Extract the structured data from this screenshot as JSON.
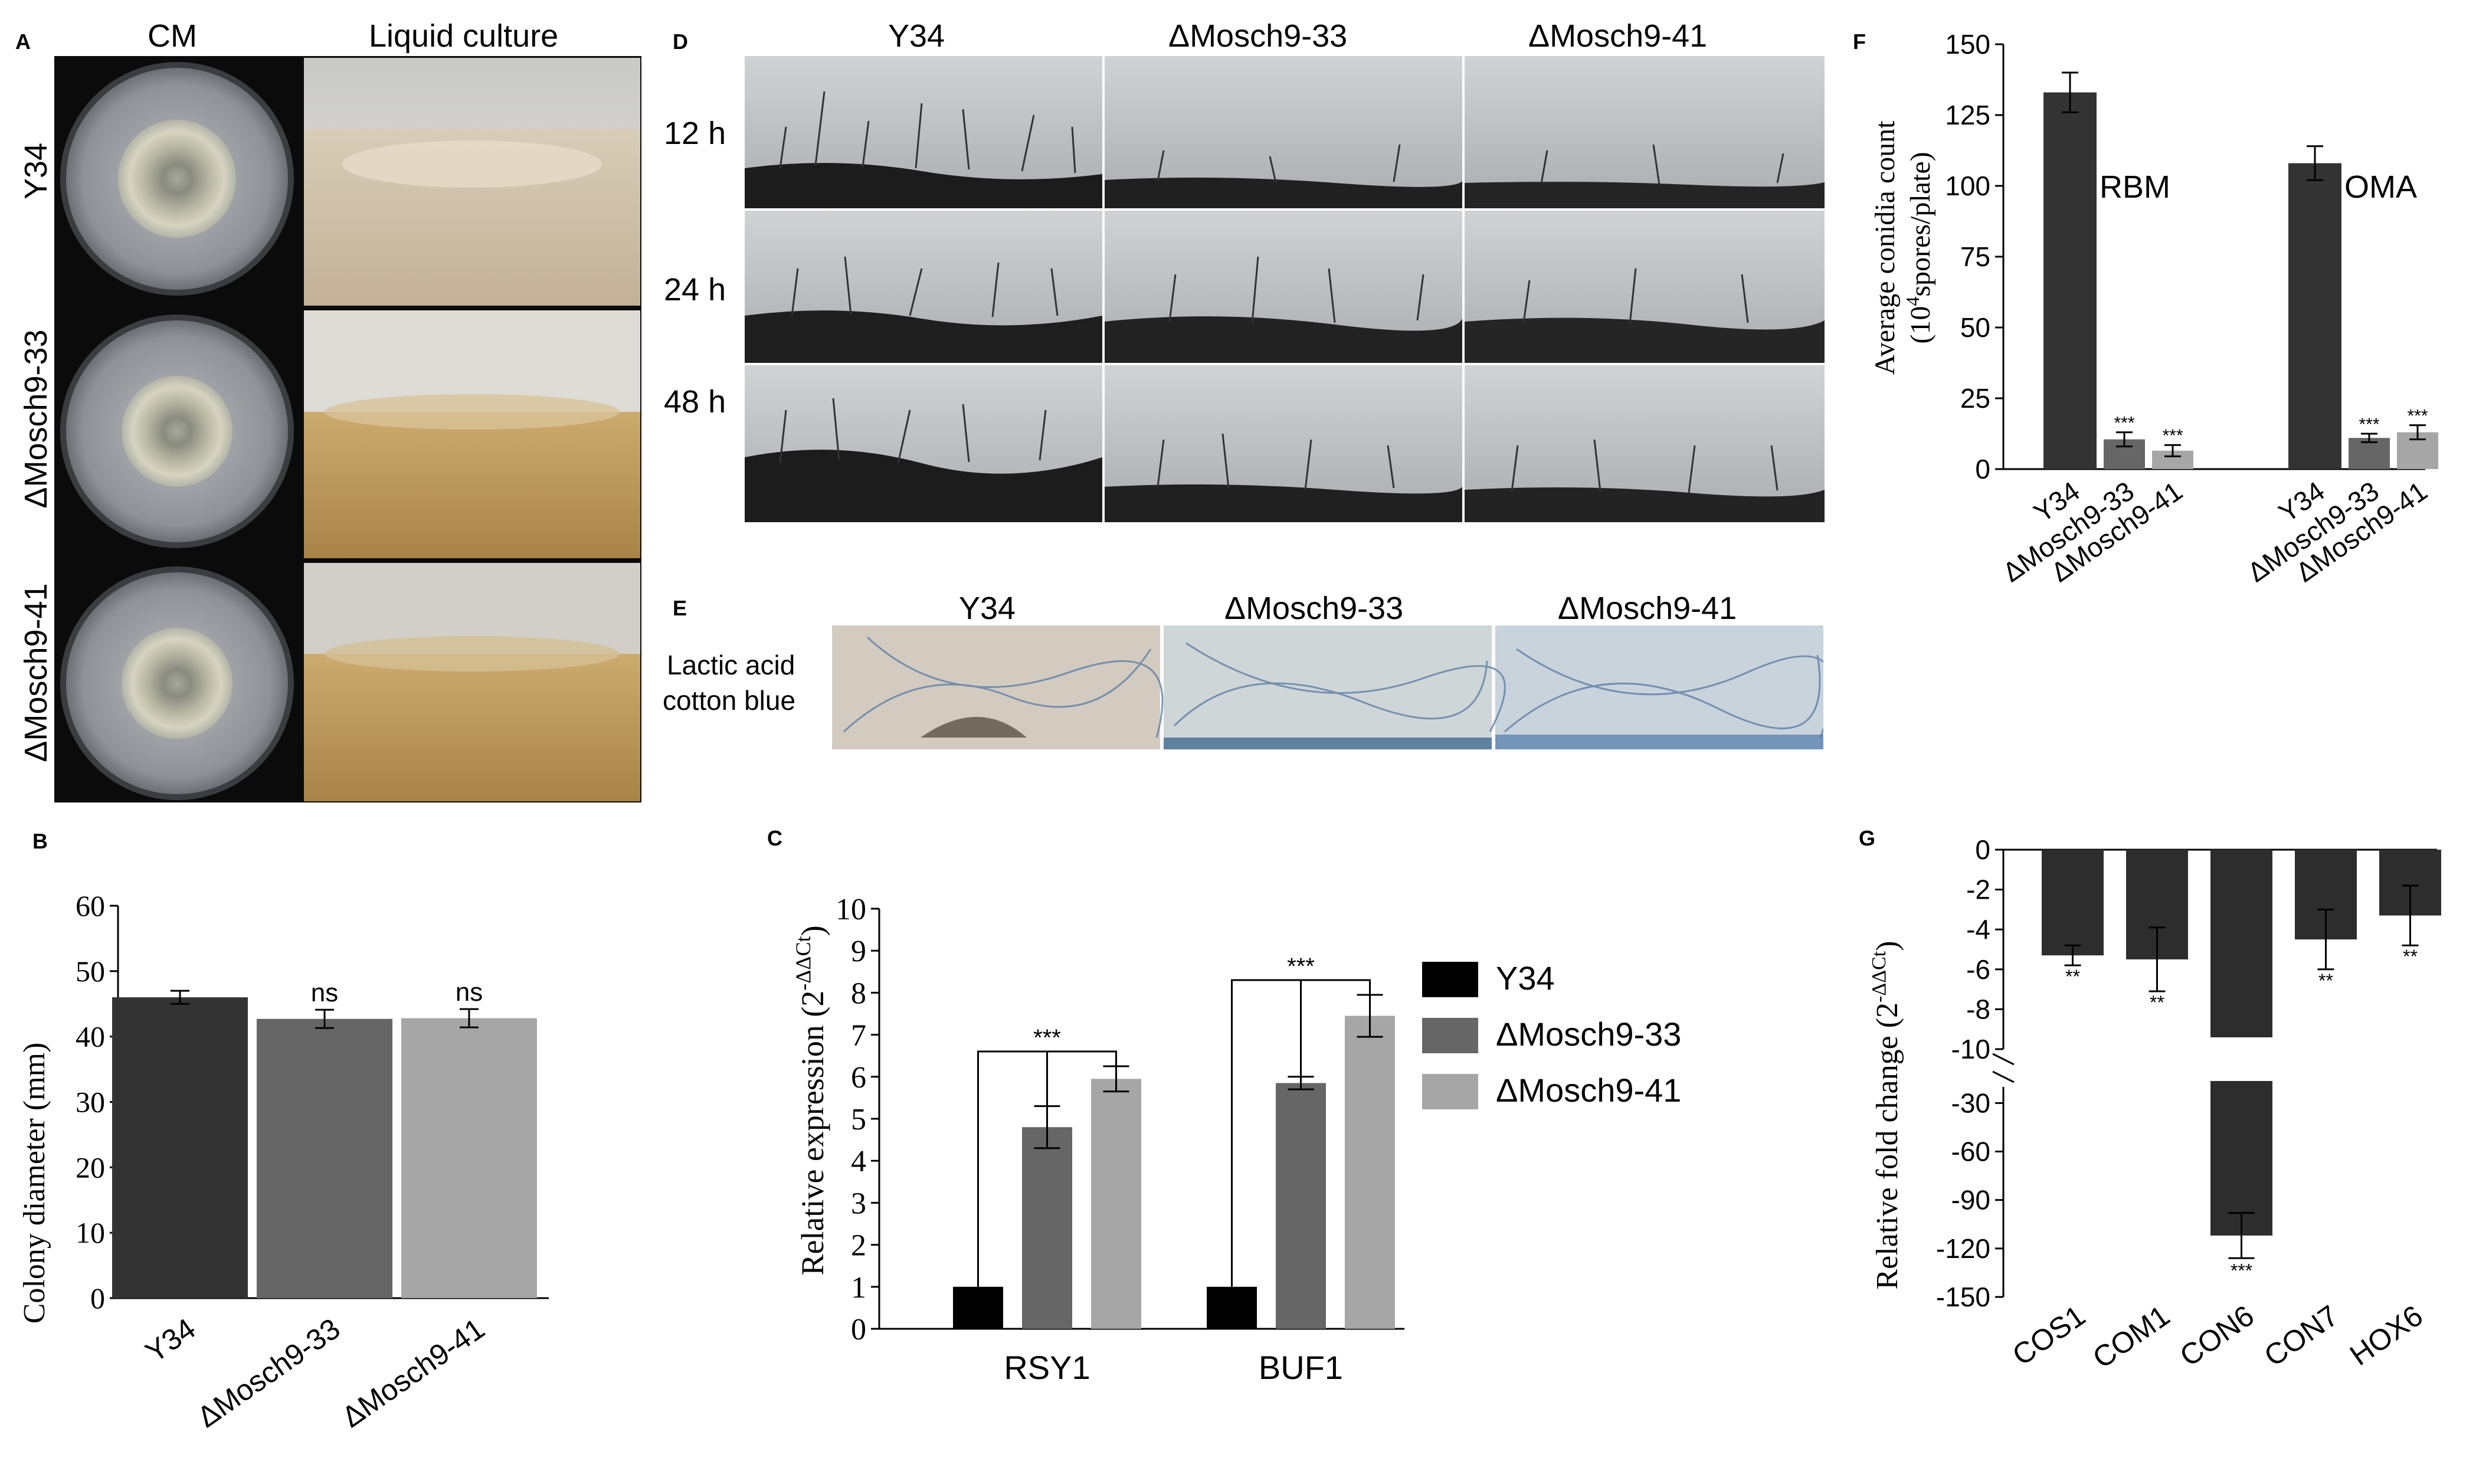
{
  "panel_A": {
    "label": "A",
    "col_headers": [
      "CM",
      "Liquid culture"
    ],
    "row_labels": [
      "Y34",
      "ΔMosch9-33",
      "ΔMosch9-41"
    ]
  },
  "panel_D": {
    "label": "D",
    "col_headers": [
      "Y34",
      "ΔMosch9-33",
      "ΔMosch9-41"
    ],
    "row_labels": [
      "12 h",
      "24 h",
      "48 h"
    ]
  },
  "panel_E": {
    "label": "E",
    "col_headers": [
      "Y34",
      "ΔMosch9-33",
      "ΔMosch9-41"
    ],
    "row_label_lines": [
      "Lactic acid",
      "cotton blue"
    ]
  },
  "colors": {
    "dark": "#2d2d2d",
    "mid": "#666666",
    "light": "#a6a6a6",
    "black": "#000000"
  },
  "chart_data": [
    {
      "panel": "B",
      "type": "bar",
      "categories": [
        "Y34",
        "ΔMosch9-33",
        "ΔMosch9-41"
      ],
      "values": [
        46,
        42.7,
        42.8
      ],
      "errors": [
        1.0,
        1.4,
        1.4
      ],
      "significance": [
        "",
        "ns",
        "ns"
      ],
      "bar_colors": [
        "#333333",
        "#666666",
        "#a6a6a6"
      ],
      "ylabel": "Colony diameter (mm)",
      "ylim": [
        0,
        60
      ],
      "yticks": [
        0,
        10,
        20,
        30,
        40,
        50,
        60
      ]
    },
    {
      "panel": "C",
      "type": "bar",
      "categories": [
        "RSY1",
        "BUF1"
      ],
      "series": [
        {
          "name": "Y34",
          "values": [
            1.0,
            1.0
          ],
          "errors": [
            0,
            0
          ],
          "color": "#000000"
        },
        {
          "name": "ΔMosch9-33",
          "values": [
            4.8,
            5.85
          ],
          "errors": [
            0.5,
            0.15
          ],
          "color": "#666666"
        },
        {
          "name": "ΔMosch9-41",
          "values": [
            5.95,
            7.45
          ],
          "errors": [
            0.3,
            0.5
          ],
          "color": "#a6a6a6"
        }
      ],
      "significance": [
        "***",
        "***"
      ],
      "ylabel_main": "Relative expression (2",
      "ylabel_sup": "-ΔΔCt",
      "ylabel_end": ")",
      "ylim": [
        0,
        10
      ],
      "yticks": [
        0,
        1,
        2,
        3,
        4,
        5,
        6,
        7,
        8,
        9,
        10
      ],
      "legend": "right"
    },
    {
      "panel": "F",
      "type": "bar",
      "groups": [
        {
          "name": "RBM",
          "categories": [
            "Y34",
            "ΔMosch9-33",
            "ΔMosch9-41"
          ],
          "values": [
            133,
            10.5,
            6.5
          ],
          "errors": [
            7,
            2.5,
            2
          ],
          "significance": [
            "",
            "***",
            "***"
          ]
        },
        {
          "name": "OMA",
          "categories": [
            "Y34",
            "ΔMosch9-33",
            "ΔMosch9-41"
          ],
          "values": [
            108,
            11,
            13
          ],
          "errors": [
            6,
            1.5,
            2.5
          ],
          "significance": [
            "",
            "***",
            "***"
          ]
        }
      ],
      "bar_colors": [
        "#333333",
        "#666666",
        "#a6a6a6"
      ],
      "ylabel_line1": "Average conidia count",
      "ylabel_line2_pre": "(10",
      "ylabel_line2_sup": "4",
      "ylabel_line2_post": "spores/plate)",
      "ylim": [
        0,
        150
      ],
      "yticks": [
        0,
        25,
        50,
        75,
        100,
        125,
        150
      ]
    },
    {
      "panel": "G",
      "type": "bar",
      "categories": [
        "COS1",
        "COM1",
        "CON6",
        "CON7",
        "HOX6"
      ],
      "values": [
        -5.3,
        -5.5,
        -112,
        -4.5,
        -3.3
      ],
      "errors": [
        0.5,
        1.6,
        14,
        1.5,
        1.5
      ],
      "significance": [
        "**",
        "**",
        "***",
        "**",
        "**"
      ],
      "ylabel_main": "Relative fold change (2",
      "ylabel_sup": "-ΔΔCt",
      "ylabel_end": ")",
      "upper_yticks": [
        0,
        -2,
        -4,
        -6,
        -8,
        -10
      ],
      "lower_yticks": [
        -30,
        -60,
        -90,
        -120,
        -150
      ],
      "ylim_upper": [
        -10,
        0
      ],
      "ylim_lower": [
        -150,
        -20
      ],
      "axis_break": true
    }
  ]
}
